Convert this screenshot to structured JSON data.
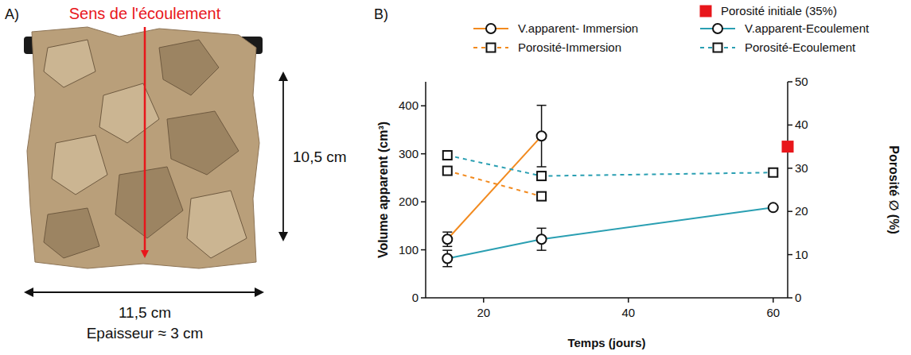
{
  "panel_letters": [
    "A)",
    "B)"
  ],
  "panel_a": {
    "flow_label": "Sens de l'écoulement",
    "height_label": "10,5 cm",
    "width_label": "11,5 cm",
    "thickness_label": "Epaisseur ≈ 3 cm"
  },
  "chart_data": {
    "type": "line",
    "x_label": "Temps (jours)",
    "y_label": "Volume apparent (cm³)",
    "y2_label": "Porosité ∅ (%)",
    "xlim": [
      12,
      62
    ],
    "xticks": [
      20,
      40,
      60
    ],
    "ylim": [
      0,
      450
    ],
    "yticks": [
      0,
      100,
      200,
      300,
      400
    ],
    "y2lim": [
      0,
      50
    ],
    "y2ticks": [
      0,
      10,
      20,
      30,
      40,
      50
    ],
    "legend": "top",
    "series": [
      {
        "name": "V.apparent- Immersion",
        "color": "#f28a1e",
        "marker": "circle",
        "line_style": "solid",
        "x": [
          15,
          28
        ],
        "values": [
          122,
          337
        ],
        "errors": [
          15,
          64
        ]
      },
      {
        "name": "Porosité-Immersion",
        "color": "#f28a1e",
        "marker": "square",
        "line_style": "dashed",
        "axis": "y2",
        "x": [
          15,
          28
        ],
        "values": [
          29.4,
          23.5
        ]
      },
      {
        "name": "V.apparent-Ecoulement",
        "color": "#2a9fb2",
        "marker": "circle",
        "line_style": "solid",
        "x": [
          15,
          28,
          60
        ],
        "values": [
          82,
          122,
          188
        ],
        "errors": [
          17,
          23,
          3
        ]
      },
      {
        "name": "Porosité-Ecoulement",
        "color": "#2a9fb2",
        "marker": "square",
        "line_style": "dashed",
        "axis": "y2",
        "x": [
          15,
          28,
          60
        ],
        "values": [
          33,
          28.2,
          29
        ]
      },
      {
        "name": "Porosité initiale (35%)",
        "color": "#e8161b",
        "type": "scatter",
        "marker": "square",
        "axis": "y2",
        "x": [
          62
        ],
        "values": [
          35
        ]
      }
    ]
  }
}
